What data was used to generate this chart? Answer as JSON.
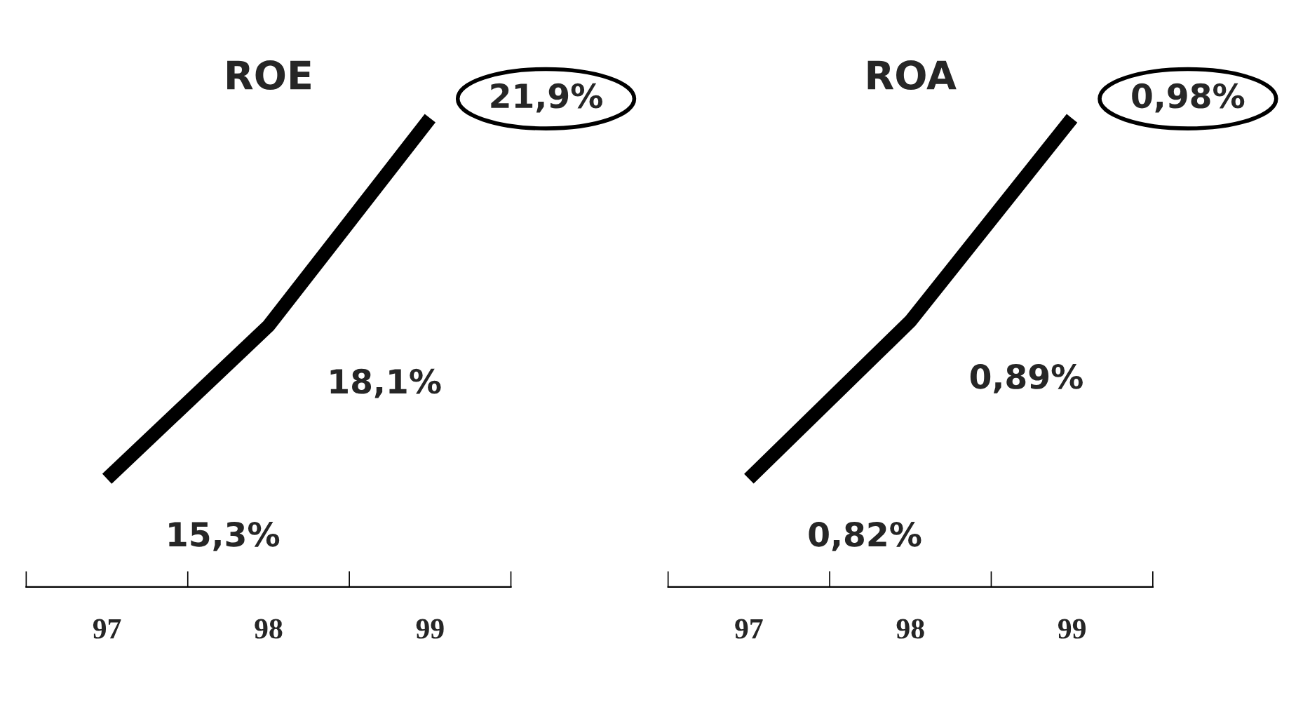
{
  "chart_data": [
    {
      "type": "line",
      "title": "ROE",
      "categories": [
        "97",
        "98",
        "99"
      ],
      "values": [
        15.3,
        18.1,
        21.9
      ],
      "value_labels": [
        "15,3%",
        "18,1%",
        "21,9%"
      ],
      "color": "#000000",
      "grid": false,
      "legend": false,
      "marker": "none",
      "line_style": "solid"
    },
    {
      "type": "line",
      "title": "ROA",
      "categories": [
        "97",
        "98",
        "99"
      ],
      "values": [
        0.82,
        0.89,
        0.98
      ],
      "value_labels": [
        "0,82%",
        "0,89%",
        "0,98%"
      ],
      "color": "#000000",
      "grid": false,
      "legend": false,
      "marker": "none",
      "line_style": "solid"
    }
  ]
}
